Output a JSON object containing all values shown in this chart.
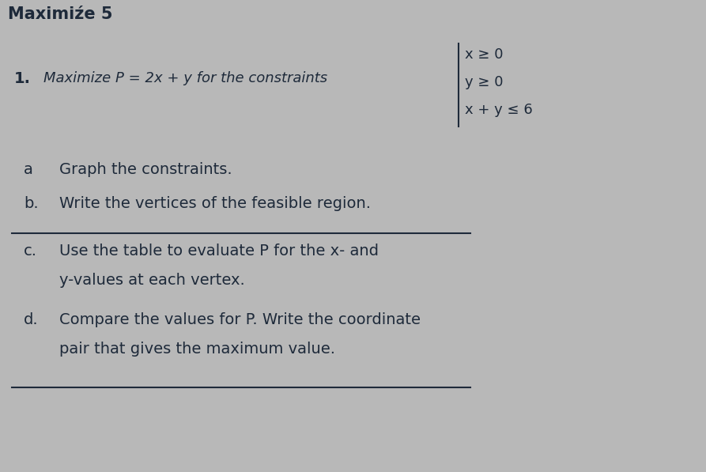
{
  "background_color": "#b8b8b8",
  "header_text": "Maximiźe 5",
  "problem_number": "1.",
  "problem_main": "Maximize P = 2x + y for the constraints",
  "constraints": [
    "x ≥ 0",
    "y ≥ 0",
    "x + y ≤ 6"
  ],
  "part_a_label": "a",
  "part_a_text": "Graph the constraints.",
  "part_b_label": "b.",
  "part_b_text": "Write the vertices of the feasible region.",
  "part_c_label": "c.",
  "part_c_text1": "Use the table to evaluate P for the x- and",
  "part_c_text2": "y-values at each vertex.",
  "part_d_label": "d.",
  "part_d_text1": "Compare the values for P. Write the coordinate",
  "part_d_text2": "pair that gives the maximum value.",
  "font_color": "#1e2a3a",
  "line_color": "#1e2a3a",
  "font_size_header": 15,
  "font_size_problem": 13,
  "font_size_parts": 14
}
